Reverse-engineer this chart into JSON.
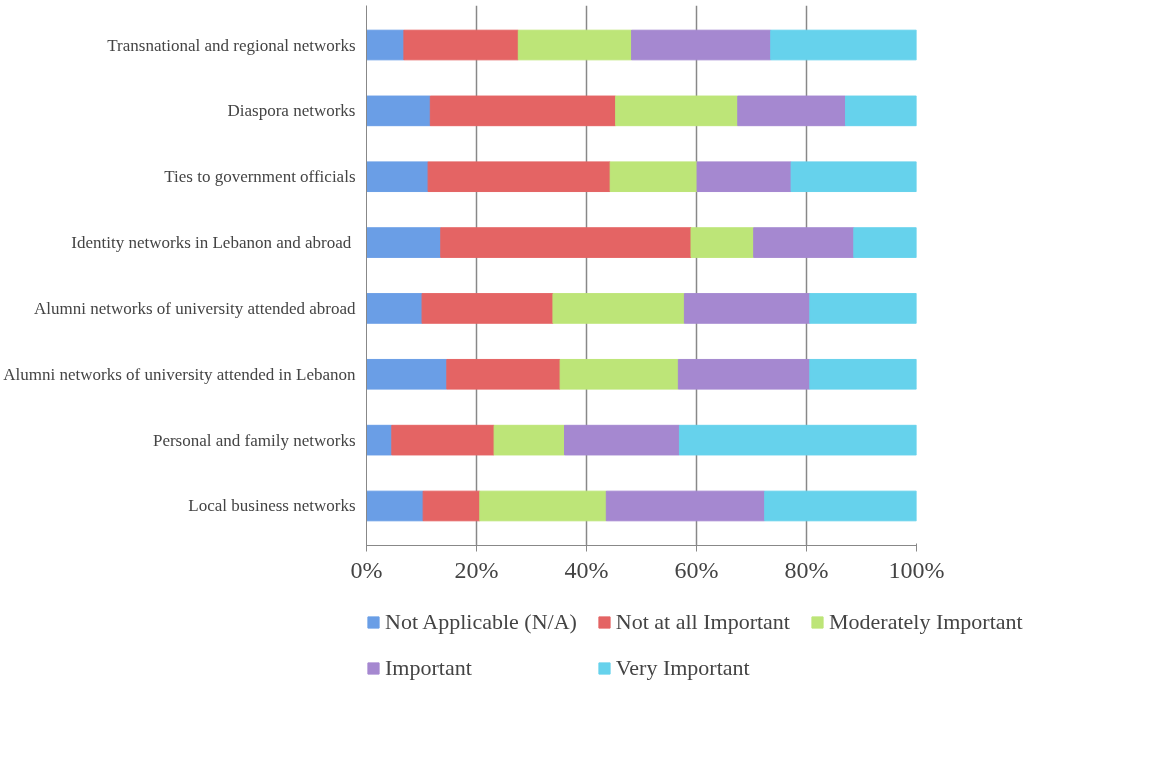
{
  "chart_data": {
    "type": "bar",
    "orientation": "horizontal",
    "stacked": true,
    "categories": [
      "Transnational and regional networks",
      "Diaspora networks",
      "Ties to government officials",
      "Identity networks in Lebanon and abroad ",
      "Alumni networks of university attended abroad",
      "Alumni networks of university attended in Lebanon",
      "Personal and family networks",
      "Local business networks"
    ],
    "series": [
      {
        "name": "Not Applicable (N/A)",
        "color": "#6a9ee6",
        "values": [
          6.8,
          11.6,
          11.2,
          13.5,
          10.1,
          14.6,
          4.6,
          10.3
        ]
      },
      {
        "name": "Not at all Important",
        "color": "#e46464",
        "values": [
          20.8,
          33.7,
          33.1,
          45.5,
          23.8,
          20.6,
          18.6,
          10.3
        ]
      },
      {
        "name": "Moderately Important",
        "color": "#bde578",
        "values": [
          20.6,
          22.2,
          15.8,
          11.4,
          23.9,
          21.5,
          12.8,
          23.0
        ]
      },
      {
        "name": "Important",
        "color": "#a588d0",
        "values": [
          25.3,
          19.6,
          17.1,
          18.2,
          22.8,
          23.9,
          20.9,
          28.8
        ]
      },
      {
        "name": "Very Important",
        "color": "#66d2ec",
        "values": [
          26.5,
          12.9,
          22.8,
          11.4,
          19.4,
          19.4,
          43.1,
          27.6
        ]
      }
    ],
    "xlim": [
      0,
      100
    ],
    "xticks": [
      {
        "value": 0,
        "label": "0%"
      },
      {
        "value": 20,
        "label": "20%"
      },
      {
        "value": 40,
        "label": "40%"
      },
      {
        "value": 60,
        "label": "60%"
      },
      {
        "value": 80,
        "label": "80%"
      },
      {
        "value": 100,
        "label": "100%"
      }
    ],
    "grid": "x",
    "legend": "bottom"
  }
}
